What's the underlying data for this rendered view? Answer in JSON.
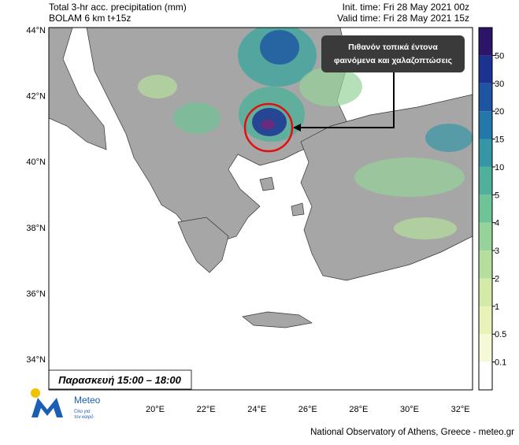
{
  "header": {
    "title": "Total 3-hr acc. precipitation (mm)",
    "model": "BOLAM 6 km t+15z",
    "init_time": "Init. time: Fri 28 May 2021 00z",
    "valid_time": "Valid time: Fri 28 May 2021 15z"
  },
  "map": {
    "lat_labels": [
      "44°N",
      "42°N",
      "40°N",
      "38°N",
      "36°N",
      "34°N"
    ],
    "lon_labels": [
      "20°E",
      "22°E",
      "24°E",
      "26°E",
      "28°E",
      "30°E",
      "32°E"
    ],
    "annotation": [
      "Πιθανόν τοπικά έντονα",
      "φαινόμενα και χαλαζοπτώσεις"
    ],
    "period": "Παρασκευή 15:00 – 18:00"
  },
  "colorbar": {
    "levels": [
      "0.1",
      "0.5",
      "1",
      "2",
      "3",
      "4",
      "5",
      "10",
      "15",
      "20",
      "30",
      "50"
    ],
    "colors": [
      "#ffffff",
      "#f6f9d8",
      "#e9f2b8",
      "#d3eaa8",
      "#b6df9f",
      "#96d39a",
      "#6fc497",
      "#4fb19b",
      "#3597a6",
      "#2378aa",
      "#1d55a2",
      "#1c3290",
      "#2c1468"
    ]
  },
  "logo": {
    "name": "Meteo",
    "tagline": [
      "Όλο για",
      "τον καιρό"
    ]
  },
  "footer": "National Observatory of Athens, Greece - meteo.gr"
}
